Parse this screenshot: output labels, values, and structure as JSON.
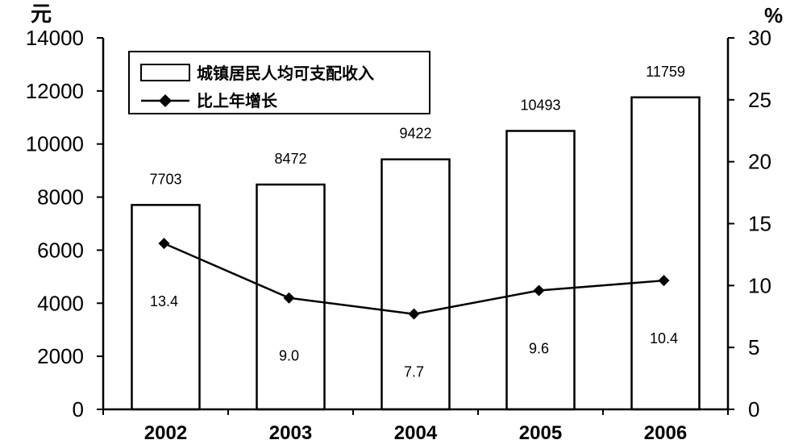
{
  "chart_data": {
    "type": "bar+line",
    "categories": [
      "2002",
      "2003",
      "2004",
      "2005",
      "2006"
    ],
    "series": [
      {
        "name": "城镇居民人均可支配收入",
        "type": "bar",
        "axis": "left",
        "values": [
          7703,
          8472,
          9422,
          10493,
          11759
        ]
      },
      {
        "name": "比上年增长",
        "type": "line",
        "axis": "right",
        "values": [
          13.4,
          9.0,
          7.7,
          9.6,
          10.4
        ]
      }
    ],
    "value_labels": {
      "bars": [
        "7703",
        "8472",
        "9422",
        "10493",
        "11759"
      ],
      "line": [
        "13.4",
        "9.0",
        "7.7",
        "9.6",
        "10.4"
      ]
    },
    "left_axis": {
      "unit": "元",
      "ylim": [
        0,
        14000
      ],
      "ticks": [
        "0",
        "2000",
        "4000",
        "6000",
        "8000",
        "10000",
        "12000",
        "14000"
      ]
    },
    "right_axis": {
      "unit": "%",
      "ylim": [
        0,
        30
      ],
      "ticks": [
        "0",
        "5",
        "10",
        "15",
        "20",
        "25",
        "30"
      ]
    },
    "legend_position": "top-left",
    "grid": false
  }
}
